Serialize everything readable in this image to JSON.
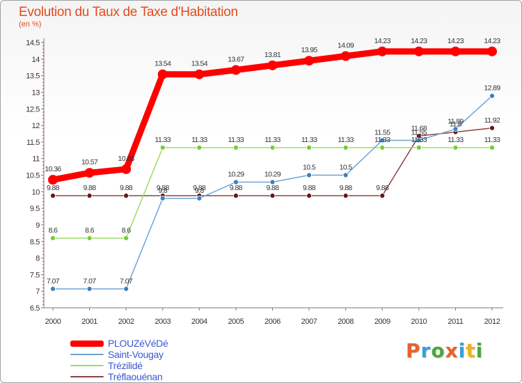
{
  "title": "Evolution du Taux de Taxe d'Habitation",
  "subtitle": "(en %)",
  "logo": {
    "letters": [
      "P",
      "r",
      "o",
      "x",
      "i",
      "t",
      "i"
    ],
    "colors": [
      "#e8602c",
      "#37a0d8",
      "#4aa83c",
      "#e8602c",
      "#37a0d8",
      "#f0b020",
      "#4aa83c"
    ]
  },
  "chart_data": {
    "type": "line",
    "x": [
      "2000",
      "2001",
      "2002",
      "2003",
      "2004",
      "2005",
      "2006",
      "2007",
      "2008",
      "2009",
      "2010",
      "2011",
      "2012"
    ],
    "ylim": [
      6.5,
      14.5
    ],
    "yticks": [
      "6.5",
      "7",
      "7.5",
      "8",
      "8.5",
      "9",
      "9.5",
      "10",
      "10.5",
      "11",
      "11.5",
      "12",
      "12.5",
      "13",
      "13.5",
      "14",
      "14.5"
    ],
    "grid": false,
    "legend_position": "bottom-left",
    "series": [
      {
        "name": "PLOUZéVéDé",
        "color": "#ff0000",
        "width": 9,
        "marker": 7,
        "values": [
          10.36,
          10.57,
          10.68,
          13.54,
          13.54,
          13.67,
          13.81,
          13.95,
          14.09,
          14.23,
          14.23,
          14.23,
          14.23
        ],
        "labels": [
          "10.36",
          "10.57",
          "10.68",
          "13.54",
          "13.54",
          "13.67",
          "13.81",
          "13.95",
          "14.09",
          "14.23",
          "14.23",
          "14.23",
          "14.23"
        ]
      },
      {
        "name": "Saint-Vougay",
        "color": "#6fa3d4",
        "width": 1.5,
        "marker": 3.5,
        "markerColor": "#3d7fc0",
        "values": [
          7.07,
          7.07,
          7.07,
          9.8,
          9.8,
          10.29,
          10.29,
          10.5,
          10.5,
          11.55,
          11.55,
          11.89,
          12.89
        ],
        "labels": [
          "7.07",
          "7.07",
          "7.07",
          "9.8",
          "9.8",
          "10.29",
          "10.29",
          "10.5",
          "10.5",
          "11.55",
          "11.55",
          "11.89",
          "12.89"
        ]
      },
      {
        "name": "Trézilidé",
        "color": "#99dd66",
        "width": 1.5,
        "marker": 3.5,
        "markerColor": "#77cc33",
        "values": [
          8.6,
          8.6,
          8.6,
          11.33,
          11.33,
          11.33,
          11.33,
          11.33,
          11.33,
          11.33,
          11.33,
          11.33,
          11.33
        ],
        "labels": [
          "8.6",
          "8.6",
          "8.6",
          "11.33",
          "11.33",
          "11.33",
          "11.33",
          "11.33",
          "11.33",
          "11.33",
          "11.33",
          "11.33",
          "11.33"
        ]
      },
      {
        "name": "Tréflaouénan",
        "color": "#884444",
        "width": 1.5,
        "marker": 3.5,
        "markerColor": "#661818",
        "values": [
          9.88,
          9.88,
          9.88,
          9.88,
          9.88,
          9.88,
          9.88,
          9.88,
          9.88,
          9.88,
          11.68,
          11.8,
          11.92
        ],
        "labels": [
          "9.88",
          "9.88",
          "9.88",
          "9.88",
          "9.88",
          "9.88",
          "9.88",
          "9.88",
          "9.88",
          "9.88",
          "11.68",
          "11.8",
          "11.92"
        ]
      }
    ]
  }
}
